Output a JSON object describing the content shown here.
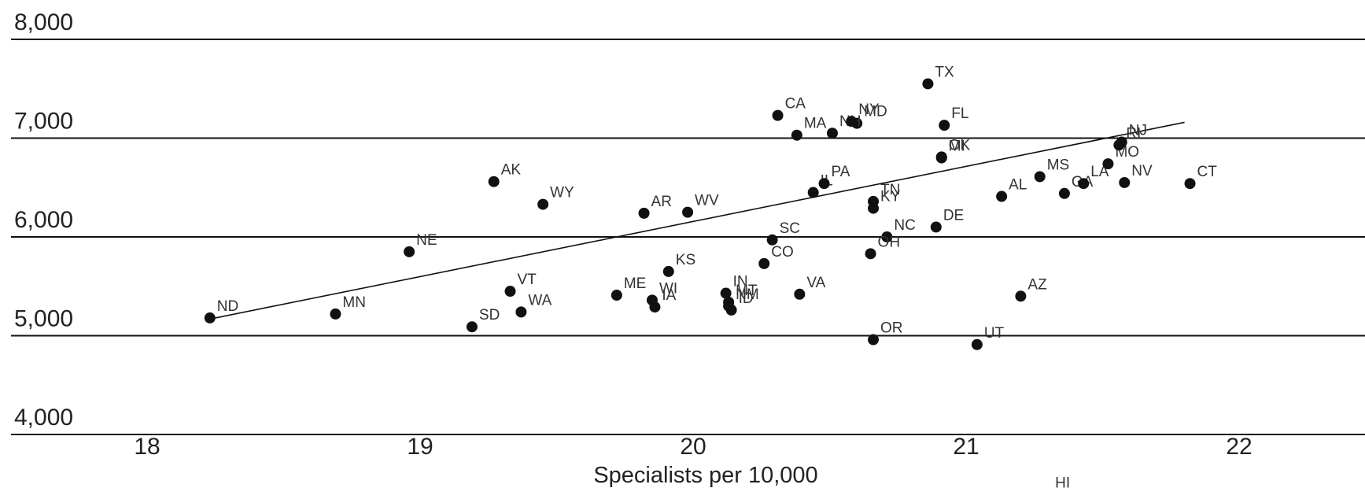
{
  "chart_data": {
    "type": "scatter",
    "title": "",
    "xlabel": "Specialists per 10,000",
    "ylabel": "",
    "xlim": [
      17.5,
      22.5
    ],
    "ylim": [
      3500,
      8300
    ],
    "x_ticks": [
      "18",
      "19",
      "20",
      "21",
      "22"
    ],
    "y_ticks": [
      "8,000",
      "7,000",
      "6,000",
      "5,000",
      "4,000"
    ],
    "grid": "horizontal",
    "colors": {
      "points": "#111111",
      "grid": "#111111",
      "trend": "#111111"
    },
    "trendline": {
      "x": [
        18.25,
        21.8
      ],
      "y": [
        5180,
        7160
      ]
    },
    "points": [
      {
        "label": "AK",
        "x": 19.27,
        "y": 6560
      },
      {
        "label": "AL",
        "x": 21.13,
        "y": 6410
      },
      {
        "label": "AR",
        "x": 19.82,
        "y": 6240
      },
      {
        "label": "AZ",
        "x": 21.2,
        "y": 5400
      },
      {
        "label": "CA",
        "x": 20.31,
        "y": 7230
      },
      {
        "label": "CO",
        "x": 20.26,
        "y": 5730
      },
      {
        "label": "CT",
        "x": 21.82,
        "y": 6540
      },
      {
        "label": "DE",
        "x": 20.89,
        "y": 6100
      },
      {
        "label": "FL",
        "x": 20.92,
        "y": 7130
      },
      {
        "label": "GA",
        "x": 21.36,
        "y": 6440
      },
      {
        "label": "HI",
        "x": 21.3,
        "y": 3390
      },
      {
        "label": "IA",
        "x": 19.86,
        "y": 5290
      },
      {
        "label": "ID",
        "x": 20.14,
        "y": 5260
      },
      {
        "label": "IL",
        "x": 20.44,
        "y": 6450
      },
      {
        "label": "IN",
        "x": 20.12,
        "y": 5430
      },
      {
        "label": "KS",
        "x": 19.91,
        "y": 5650
      },
      {
        "label": "KY",
        "x": 20.66,
        "y": 6290
      },
      {
        "label": "LA",
        "x": 21.43,
        "y": 6540
      },
      {
        "label": "MA",
        "x": 20.38,
        "y": 7030
      },
      {
        "label": "MD",
        "x": 20.6,
        "y": 7150
      },
      {
        "label": "ME",
        "x": 19.72,
        "y": 5410
      },
      {
        "label": "MI",
        "x": 20.91,
        "y": 6800
      },
      {
        "label": "MN",
        "x": 18.69,
        "y": 5220
      },
      {
        "label": "MO",
        "x": 21.52,
        "y": 6740
      },
      {
        "label": "MS",
        "x": 21.27,
        "y": 6610
      },
      {
        "label": "MT",
        "x": 20.13,
        "y": 5340
      },
      {
        "label": "NC",
        "x": 20.71,
        "y": 6000
      },
      {
        "label": "ND",
        "x": 18.23,
        "y": 5180
      },
      {
        "label": "NE",
        "x": 18.96,
        "y": 5850
      },
      {
        "label": "NH",
        "x": 20.51,
        "y": 7050
      },
      {
        "label": "NJ",
        "x": 21.57,
        "y": 6960
      },
      {
        "label": "NM",
        "x": 20.13,
        "y": 5300
      },
      {
        "label": "NV",
        "x": 21.58,
        "y": 6550
      },
      {
        "label": "NY",
        "x": 20.58,
        "y": 7170
      },
      {
        "label": "OH",
        "x": 20.65,
        "y": 5830
      },
      {
        "label": "OK",
        "x": 20.91,
        "y": 6810
      },
      {
        "label": "OR",
        "x": 20.66,
        "y": 4960
      },
      {
        "label": "PA",
        "x": 20.48,
        "y": 6540
      },
      {
        "label": "RI",
        "x": 21.56,
        "y": 6930
      },
      {
        "label": "SC",
        "x": 20.29,
        "y": 5970
      },
      {
        "label": "SD",
        "x": 19.19,
        "y": 5090
      },
      {
        "label": "TN",
        "x": 20.66,
        "y": 6360
      },
      {
        "label": "TX",
        "x": 20.86,
        "y": 7550
      },
      {
        "label": "UT",
        "x": 21.04,
        "y": 4910
      },
      {
        "label": "VA",
        "x": 20.39,
        "y": 5420
      },
      {
        "label": "VT",
        "x": 19.33,
        "y": 5450
      },
      {
        "label": "WA",
        "x": 19.37,
        "y": 5240
      },
      {
        "label": "WI",
        "x": 19.85,
        "y": 5360
      },
      {
        "label": "WV",
        "x": 19.98,
        "y": 6250
      },
      {
        "label": "WY",
        "x": 19.45,
        "y": 6330
      }
    ]
  }
}
